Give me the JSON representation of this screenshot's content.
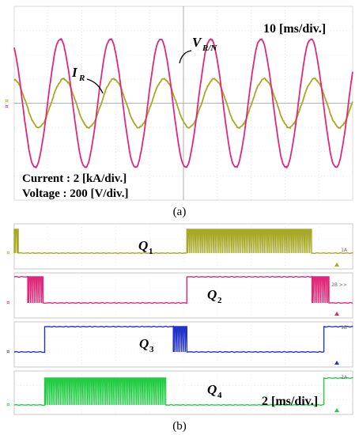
{
  "chart_data": [
    {
      "type": "line",
      "caption": "(a)",
      "timebase_label": "10 [ms/div.]",
      "scale_lines": [
        "Current : 2 [kA/div.]",
        "Voltage  : 200 [V/div.]"
      ],
      "grid": true,
      "series": [
        {
          "name": "V",
          "subscript": "R/N",
          "color": "#e0287a",
          "waveform": "sine",
          "cycles": 6.75,
          "amplitude_div": 2.65,
          "phase_deg": 120
        },
        {
          "name": "I",
          "subscript": "R",
          "color": "#a8a828",
          "waveform": "sine",
          "cycles": 6.75,
          "amplitude_div": 1.0,
          "phase_deg": 95
        }
      ]
    },
    {
      "type": "line",
      "caption": "(b)",
      "timebase_label": "2 [ms/div.]",
      "grid": true,
      "series": [
        {
          "name": "Q",
          "subscript": "1",
          "color": "#a8a828",
          "marker": "1A",
          "segments": [
            {
              "t": [
                0.0,
                0.012
              ],
              "state": "pwm"
            },
            {
              "t": [
                0.012,
                0.51
              ],
              "state": "low"
            },
            {
              "t": [
                0.51,
                0.88
              ],
              "state": "pwm"
            },
            {
              "t": [
                0.88,
                1.0
              ],
              "state": "low"
            }
          ]
        },
        {
          "name": "Q",
          "subscript": "2",
          "color": "#e0287a",
          "marker": "2B >>",
          "segments": [
            {
              "t": [
                0.0,
                0.04
              ],
              "state": "high"
            },
            {
              "t": [
                0.04,
                0.085
              ],
              "state": "pwm"
            },
            {
              "t": [
                0.085,
                0.51
              ],
              "state": "low"
            },
            {
              "t": [
                0.51,
                0.88
              ],
              "state": "high"
            },
            {
              "t": [
                0.88,
                0.93
              ],
              "state": "pwm"
            },
            {
              "t": [
                0.93,
                1.0
              ],
              "state": "low"
            }
          ]
        },
        {
          "name": "Q",
          "subscript": "3",
          "color": "#2233cc",
          "marker": "1B",
          "segments": [
            {
              "t": [
                0.0,
                0.09
              ],
              "state": "low"
            },
            {
              "t": [
                0.09,
                0.47
              ],
              "state": "high"
            },
            {
              "t": [
                0.47,
                0.51
              ],
              "state": "pwm"
            },
            {
              "t": [
                0.51,
                0.915
              ],
              "state": "low"
            },
            {
              "t": [
                0.915,
                1.0
              ],
              "state": "high"
            }
          ]
        },
        {
          "name": "Q",
          "subscript": "4",
          "color": "#22cc44",
          "marker": "2A",
          "segments": [
            {
              "t": [
                0.0,
                0.09
              ],
              "state": "low"
            },
            {
              "t": [
                0.09,
                0.45
              ],
              "state": "pwm"
            },
            {
              "t": [
                0.45,
                0.915
              ],
              "state": "low"
            },
            {
              "t": [
                0.915,
                1.0
              ],
              "state": "high"
            }
          ]
        }
      ]
    }
  ]
}
